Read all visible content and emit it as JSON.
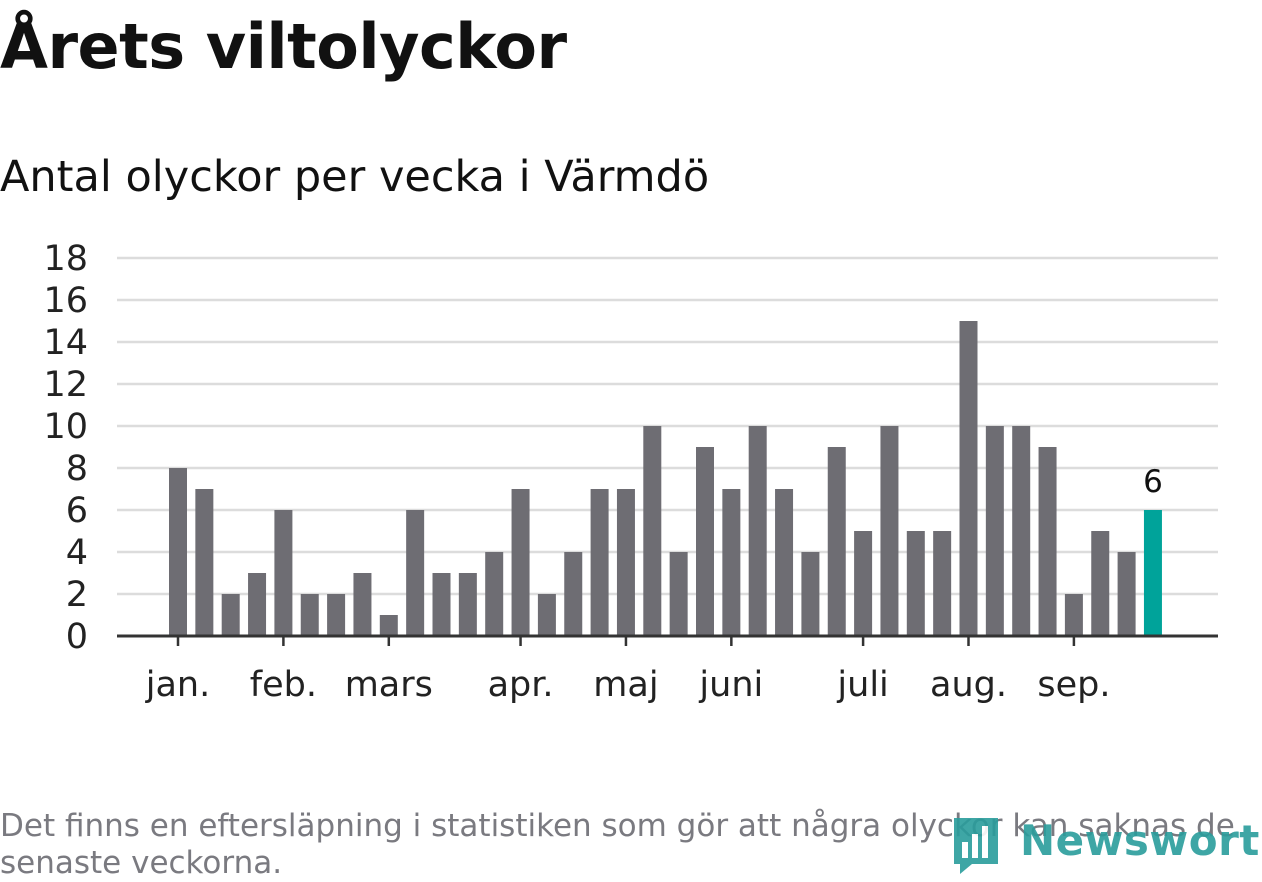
{
  "title": "Årets viltolyckor",
  "subtitle": "Antal olyckor per vecka i Värmdö",
  "footnote": "Det finns en eftersläpning i statistiken som gör att några olyckor kan saknas de senaste veckorna.",
  "brand": {
    "name": "Newsworthy",
    "icon": "newsworthy-logo-icon",
    "color": "#2a9d9c"
  },
  "colors": {
    "bar": "#6e6d73",
    "highlight": "#00a39a",
    "grid": "#dcdcdc",
    "axis": "#333333"
  },
  "chart_data": {
    "type": "bar",
    "title": "Antal olyckor per vecka i Värmdö",
    "xlabel": "",
    "ylabel": "",
    "ylim": [
      0,
      18
    ],
    "yticks": [
      0,
      2,
      4,
      6,
      8,
      10,
      12,
      14,
      16,
      18
    ],
    "grid": true,
    "month_labels": [
      {
        "label": "jan.",
        "week": 1
      },
      {
        "label": "feb.",
        "week": 5
      },
      {
        "label": "mars",
        "week": 9
      },
      {
        "label": "apr.",
        "week": 14
      },
      {
        "label": "maj",
        "week": 18
      },
      {
        "label": "juni",
        "week": 22
      },
      {
        "label": "juli",
        "week": 27
      },
      {
        "label": "aug.",
        "week": 31
      },
      {
        "label": "sep.",
        "week": 35
      }
    ],
    "weeks": [
      1,
      2,
      3,
      4,
      5,
      6,
      7,
      8,
      9,
      10,
      11,
      12,
      13,
      14,
      15,
      16,
      17,
      18,
      19,
      20,
      21,
      22,
      23,
      24,
      25,
      26,
      27,
      28,
      29,
      30,
      31,
      32,
      33,
      34,
      35,
      36,
      37,
      38
    ],
    "values": [
      8,
      7,
      2,
      3,
      6,
      2,
      2,
      3,
      1,
      6,
      3,
      3,
      4,
      7,
      2,
      4,
      7,
      7,
      10,
      4,
      9,
      7,
      10,
      7,
      4,
      9,
      5,
      10,
      5,
      5,
      15,
      10,
      10,
      9,
      2,
      5,
      4,
      6
    ],
    "highlight_last": true,
    "annotations": [
      {
        "week": 38,
        "text": "6"
      }
    ]
  }
}
